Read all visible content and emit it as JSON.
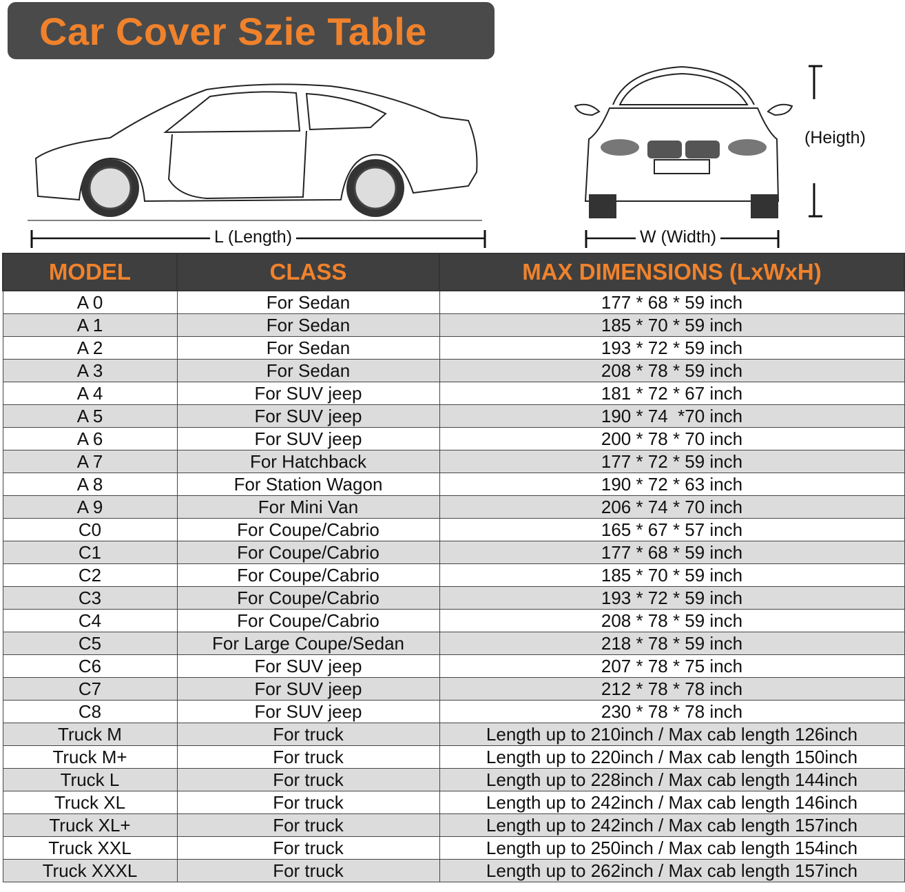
{
  "title": "Car Cover Szie Table",
  "labels": {
    "length": "L (Length)",
    "width": "W (Width)",
    "height": "(Heigth)"
  },
  "colors": {
    "accent": "#f0822c",
    "header_bg": "#3f3f3f",
    "stripe": "#dcdcdc"
  },
  "table": {
    "headers": [
      "MODEL",
      "CLASS",
      "MAX DIMENSIONS (LxWxH)"
    ],
    "rows": [
      [
        "A 0",
        "For Sedan",
        "177 * 68 * 59 inch"
      ],
      [
        "A 1",
        "For Sedan",
        "185 * 70 * 59 inch"
      ],
      [
        "A 2",
        "For Sedan",
        "193 * 72 * 59 inch"
      ],
      [
        "A 3",
        "For Sedan",
        "208 * 78 * 59 inch"
      ],
      [
        "A 4",
        "For SUV jeep",
        "181 * 72 * 67 inch"
      ],
      [
        "A 5",
        "For SUV jeep",
        "190 * 74  *70 inch"
      ],
      [
        "A 6",
        "For SUV jeep",
        "200 * 78 * 70 inch"
      ],
      [
        "A 7",
        "For Hatchback",
        "177 * 72 * 59 inch"
      ],
      [
        "A 8",
        "For Station Wagon",
        "190 * 72 * 63 inch"
      ],
      [
        "A 9",
        "For Mini Van",
        "206 * 74 * 70 inch"
      ],
      [
        "C0",
        "For Coupe/Cabrio",
        "165 * 67 * 57 inch"
      ],
      [
        "C1",
        "For Coupe/Cabrio",
        "177 * 68 * 59 inch"
      ],
      [
        "C2",
        "For Coupe/Cabrio",
        "185 * 70 * 59 inch"
      ],
      [
        "C3",
        "For Coupe/Cabrio",
        "193 * 72 * 59 inch"
      ],
      [
        "C4",
        "For Coupe/Cabrio",
        "208 * 78 * 59 inch"
      ],
      [
        "C5",
        "For Large Coupe/Sedan",
        "218 * 78 * 59 inch"
      ],
      [
        "C6",
        "For SUV jeep",
        "207 * 78 * 75 inch"
      ],
      [
        "C7",
        "For SUV jeep",
        "212 * 78 * 78 inch"
      ],
      [
        "C8",
        "For SUV jeep",
        "230 * 78 * 78 inch"
      ],
      [
        "Truck M",
        "For truck",
        "Length up to 210inch / Max cab length 126inch"
      ],
      [
        "Truck M+",
        "For truck",
        "Length up to 220inch / Max cab length 150inch"
      ],
      [
        "Truck L",
        "For truck",
        "Length up to 228inch / Max cab length 144inch"
      ],
      [
        "Truck XL",
        "For truck",
        "Length up to 242inch / Max cab length 146inch"
      ],
      [
        "Truck XL+",
        "For truck",
        "Length up to 242inch / Max cab length 157inch"
      ],
      [
        "Truck XXL",
        "For truck",
        "Length up to 250inch / Max cab length 154inch"
      ],
      [
        "Truck XXXL",
        "For truck",
        "Length up to 262inch / Max cab length 157inch"
      ]
    ]
  }
}
